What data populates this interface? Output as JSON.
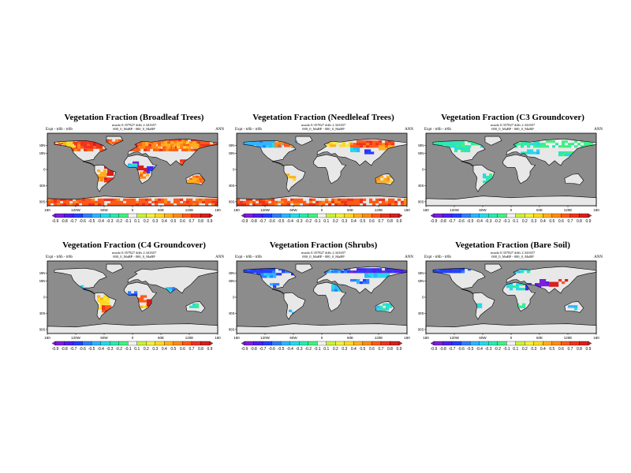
{
  "lon_ticks": [
    "180",
    "120W",
    "60W",
    "0",
    "60E",
    "120E",
    "180"
  ],
  "lat_ticks": [
    "60N",
    "40N",
    "0",
    "40S",
    "80S"
  ],
  "colorbar": {
    "levels": [
      "-0.9",
      "-0.8",
      "-0.7",
      "-0.6",
      "-0.5",
      "-0.4",
      "-0.3",
      "-0.2",
      "-0.1",
      "0.1",
      "0.2",
      "0.3",
      "0.4",
      "0.5",
      "0.6",
      "0.7",
      "0.8",
      "0.9"
    ],
    "colors": [
      "#7b1fd8",
      "#4d1ff0",
      "#2240ff",
      "#2f7dff",
      "#2fb4ff",
      "#27d8e8",
      "#2ce8b0",
      "#40f080",
      "#f2f2f2",
      "#c8f040",
      "#f0f040",
      "#ffd820",
      "#ffb020",
      "#ff8a18",
      "#ff5a18",
      "#f0321e",
      "#d81e1e"
    ]
  },
  "panels": [
    {
      "title": "Vegetation Fraction (Broadleaf Trees)",
      "stats": "rmsdo 0.357827 diffs 2.341657",
      "expt": "Expt - tr6b - tr6b",
      "sub": "000_0_MaBP - 000_0_MaBP",
      "season": "ANN",
      "pattern": "broadleaf"
    },
    {
      "title": "Vegetation Fraction (Needleleaf Trees)",
      "stats": "rmsdo 0.357827 diffs 2.341657",
      "expt": "Expt - tr6b - tr6b",
      "sub": "000_0_MaBP - 000_0_MaBP",
      "season": "ANN",
      "pattern": "needleleaf"
    },
    {
      "title": "Vegetation Fraction (C3 Groundcover)",
      "stats": "rmsdo 0.357827 diffs 2.341657",
      "expt": "Expt - tr6b - tr6b",
      "sub": "000_0_MaBP - 000_0_MaBP",
      "season": "ANN",
      "pattern": "c3"
    },
    {
      "title": "Vegetation Fraction (C4 Groundcover)",
      "stats": "rmsdo 0.357827 diffs 2.341657",
      "expt": "Expt - tr6b - tr6b",
      "sub": "000_0_MaBP - 000_0_MaBP",
      "season": "ANN",
      "pattern": "c4"
    },
    {
      "title": "Vegetation Fraction (Shrubs)",
      "stats": "rmsdo 0.357827 diffs 2.341657",
      "expt": "Expt - tr6b - tr6b",
      "sub": "000_0_MaBP - 000_0_MaBP",
      "season": "ANN",
      "pattern": "shrubs"
    },
    {
      "title": "Vegetation Fraction (Bare Soil)",
      "stats": "rmsdo 0.357827 diffs 2.341657",
      "expt": "Expt - tr6b - tr6b",
      "sub": "000_0_MaBP - 000_0_MaBP",
      "season": "ANN",
      "pattern": "bare"
    }
  ]
}
